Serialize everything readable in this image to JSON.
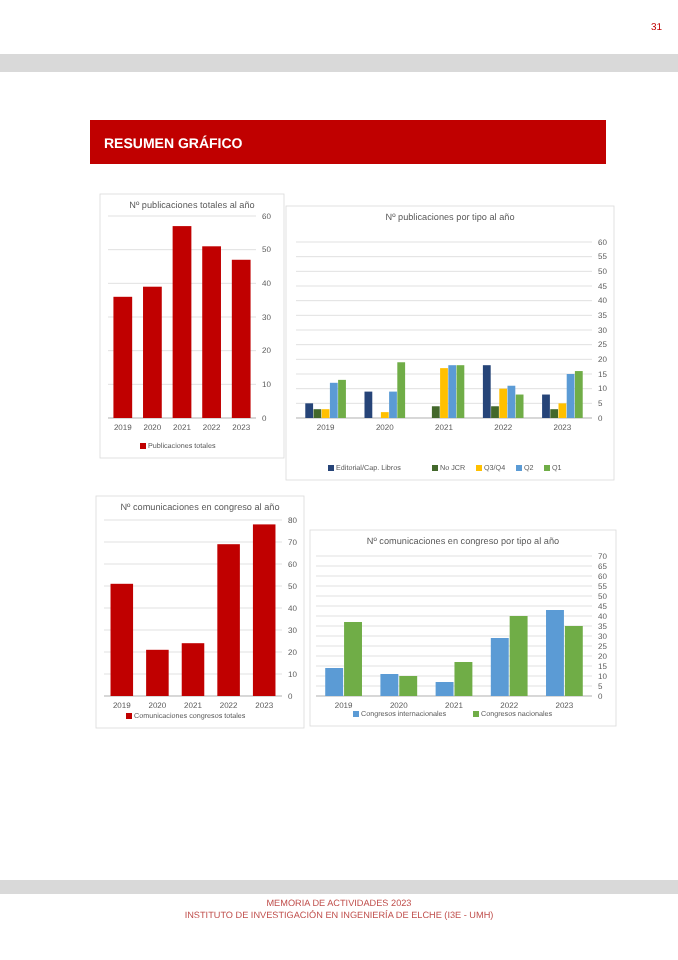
{
  "chart_data": [
    {
      "type": "bar",
      "title": "Nº publicaciones totales al año",
      "categories": [
        "2019",
        "2020",
        "2021",
        "2022",
        "2023"
      ],
      "series": [
        {
          "name": "Publicaciones totales",
          "color": "#c00000",
          "values": [
            36,
            39,
            57,
            51,
            47
          ]
        }
      ],
      "ylim": [
        0,
        60
      ],
      "yticks": [
        0,
        10,
        20,
        30,
        40,
        50,
        60
      ],
      "grid": "y",
      "legend": "bottom",
      "annotations": [
        "31",
        "RESUMEN GRÁFICO",
        "MEMORIA DE ACTIVIDADES 2023",
        "INSTITUTO DE INVESTIGACIÓN EN INGENIERÍA DE ELCHE (I3E - UMH)"
      ]
    },
    {
      "type": "bar",
      "title": "Nº publicaciones por tipo al año",
      "categories": [
        "2019",
        "2020",
        "2021",
        "2022",
        "2023"
      ],
      "series": [
        {
          "name": "Editorial/Cap. Libros",
          "color": "#264478",
          "values": [
            5,
            9,
            0,
            18,
            8
          ]
        },
        {
          "name": "No JCR",
          "color": "#43682b",
          "values": [
            3,
            0,
            4,
            4,
            3
          ]
        },
        {
          "name": "Q3/Q4",
          "color": "#ffc000",
          "values": [
            3,
            2,
            17,
            10,
            5
          ]
        },
        {
          "name": "Q2",
          "color": "#5b9bd5",
          "values": [
            12,
            9,
            18,
            11,
            15
          ]
        },
        {
          "name": "Q1",
          "color": "#70ad47",
          "values": [
            13,
            19,
            18,
            8,
            16
          ]
        }
      ],
      "ylim": [
        0,
        60
      ],
      "yticks": [
        0,
        5,
        10,
        15,
        20,
        25,
        30,
        35,
        40,
        45,
        50,
        55,
        60
      ],
      "grid": "y",
      "legend": "bottom"
    },
    {
      "type": "bar",
      "title": "Nº comunicaciones en congreso al año",
      "categories": [
        "2019",
        "2020",
        "2021",
        "2022",
        "2023"
      ],
      "series": [
        {
          "name": "Comunicaciones congresos totales",
          "color": "#c00000",
          "values": [
            51,
            21,
            24,
            69,
            78
          ]
        }
      ],
      "ylim": [
        0,
        80
      ],
      "yticks": [
        0,
        10,
        20,
        30,
        40,
        50,
        60,
        70,
        80
      ],
      "grid": "y",
      "legend": "bottom"
    },
    {
      "type": "bar",
      "title": "Nº comunicaciones en congreso por tipo al año",
      "categories": [
        "2019",
        "2020",
        "2021",
        "2022",
        "2023"
      ],
      "series": [
        {
          "name": "Congresos internacionales",
          "color": "#5b9bd5",
          "values": [
            14,
            11,
            7,
            29,
            43
          ]
        },
        {
          "name": "Congresos nacionales",
          "color": "#70ad47",
          "values": [
            37,
            10,
            17,
            40,
            35
          ]
        }
      ],
      "ylim": [
        0,
        70
      ],
      "yticks": [
        0,
        5,
        10,
        15,
        20,
        25,
        30,
        35,
        40,
        45,
        50,
        55,
        60,
        65,
        70
      ],
      "grid": "y",
      "legend": "bottom"
    }
  ]
}
